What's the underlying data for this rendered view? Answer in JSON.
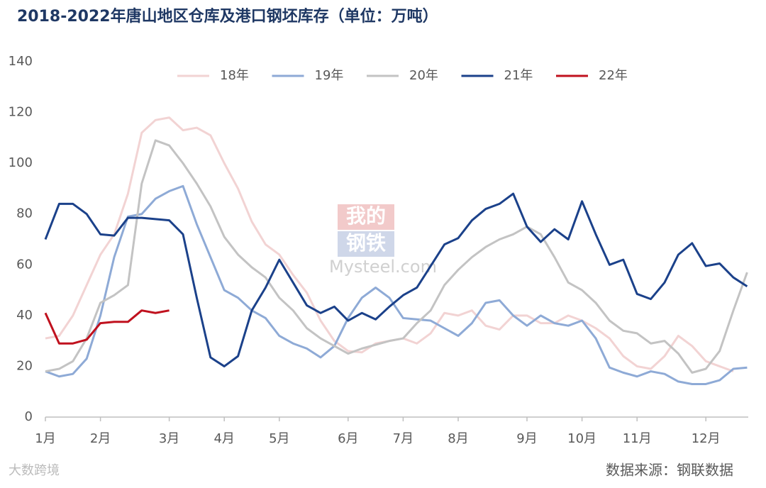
{
  "chart_data": {
    "type": "line",
    "title": "2018-2022年唐山地区仓库及港口钢坯库存（单位：万吨）",
    "source": "数据来源：钢联数据",
    "watermarks": [
      "我的",
      "钢铁",
      "Mysteel.com",
      "大数跨境"
    ],
    "categories": [
      "1月",
      null,
      null,
      null,
      "2月",
      null,
      null,
      null,
      null,
      "3月",
      null,
      null,
      null,
      "4月",
      null,
      null,
      null,
      "5月",
      null,
      null,
      null,
      null,
      "6月",
      null,
      null,
      null,
      "7月",
      null,
      null,
      null,
      "8月",
      null,
      null,
      null,
      null,
      "9月",
      null,
      null,
      null,
      "10月",
      null,
      null,
      null,
      "11月",
      null,
      null,
      null,
      null,
      "12月",
      null,
      null,
      null
    ],
    "ylim": [
      0,
      140
    ],
    "yticks": [
      0,
      20,
      40,
      60,
      80,
      100,
      120,
      140
    ],
    "grid": false,
    "legend": "top",
    "series": [
      {
        "name": "18年",
        "color": "#f2d3d3",
        "values": [
          31,
          32,
          40,
          52,
          64,
          72,
          88,
          112,
          117,
          118,
          113,
          114,
          111,
          100,
          90,
          77,
          68,
          64,
          56,
          49,
          38,
          30,
          26,
          25.5,
          29,
          30,
          31,
          29,
          33,
          41,
          40,
          42,
          36,
          34.5,
          40,
          40,
          37,
          37,
          40,
          38,
          35,
          31,
          24,
          20,
          19,
          24,
          32,
          28,
          22,
          20,
          18,
          null
        ]
      },
      {
        "name": "19年",
        "color": "#8eaad6",
        "values": [
          18,
          16,
          17,
          23,
          40,
          63,
          79,
          80,
          86,
          89,
          91,
          76,
          63,
          50,
          47,
          42,
          39,
          32,
          29,
          27,
          23.5,
          28,
          39,
          47,
          51,
          47,
          39,
          38.5,
          38,
          35,
          32,
          37,
          45,
          46,
          40,
          36,
          40,
          37,
          36,
          38,
          31,
          19.5,
          17.5,
          16,
          18,
          17,
          14,
          13,
          13,
          14.5,
          19,
          19.5
        ]
      },
      {
        "name": "20年",
        "color": "#c3c3c3",
        "values": [
          18,
          19,
          22,
          31,
          45,
          48,
          52,
          92,
          109,
          107,
          100,
          92,
          83,
          71,
          64,
          59,
          55,
          47,
          42,
          35,
          31,
          28,
          25,
          27,
          28.5,
          30,
          31,
          37,
          42,
          52,
          58,
          63,
          67,
          70,
          72,
          75,
          72,
          63,
          53,
          50,
          45,
          38,
          34,
          33,
          29,
          30,
          25,
          17.5,
          19,
          26,
          42,
          57
        ]
      },
      {
        "name": "21年",
        "color": "#1b418a",
        "values": [
          70,
          84,
          84,
          80,
          72,
          71.5,
          78.5,
          78.5,
          78,
          77.5,
          72,
          47,
          23.5,
          20,
          24,
          42,
          51,
          62,
          53,
          44,
          41,
          43.5,
          38,
          41,
          38.5,
          43.5,
          48,
          51,
          59.5,
          68,
          70.5,
          77.5,
          82,
          84,
          88,
          75,
          69,
          74,
          70,
          85,
          72,
          60,
          62,
          48.5,
          46.5,
          53,
          64,
          68.5,
          59.5,
          60.5,
          55,
          51.5
        ]
      },
      {
        "name": "22年",
        "color": "#c0111e",
        "values": [
          41,
          29,
          29,
          30.5,
          37,
          37.5,
          37.5,
          42,
          41,
          42,
          null,
          null,
          null,
          null,
          null,
          null,
          null,
          null,
          null,
          null,
          null,
          null,
          null,
          null,
          null,
          null,
          null,
          null,
          null,
          null,
          null,
          null,
          null,
          null,
          null,
          null,
          null,
          null,
          null,
          null,
          null,
          null,
          null,
          null,
          null,
          null,
          null,
          null,
          null,
          null,
          null,
          null
        ]
      }
    ]
  }
}
